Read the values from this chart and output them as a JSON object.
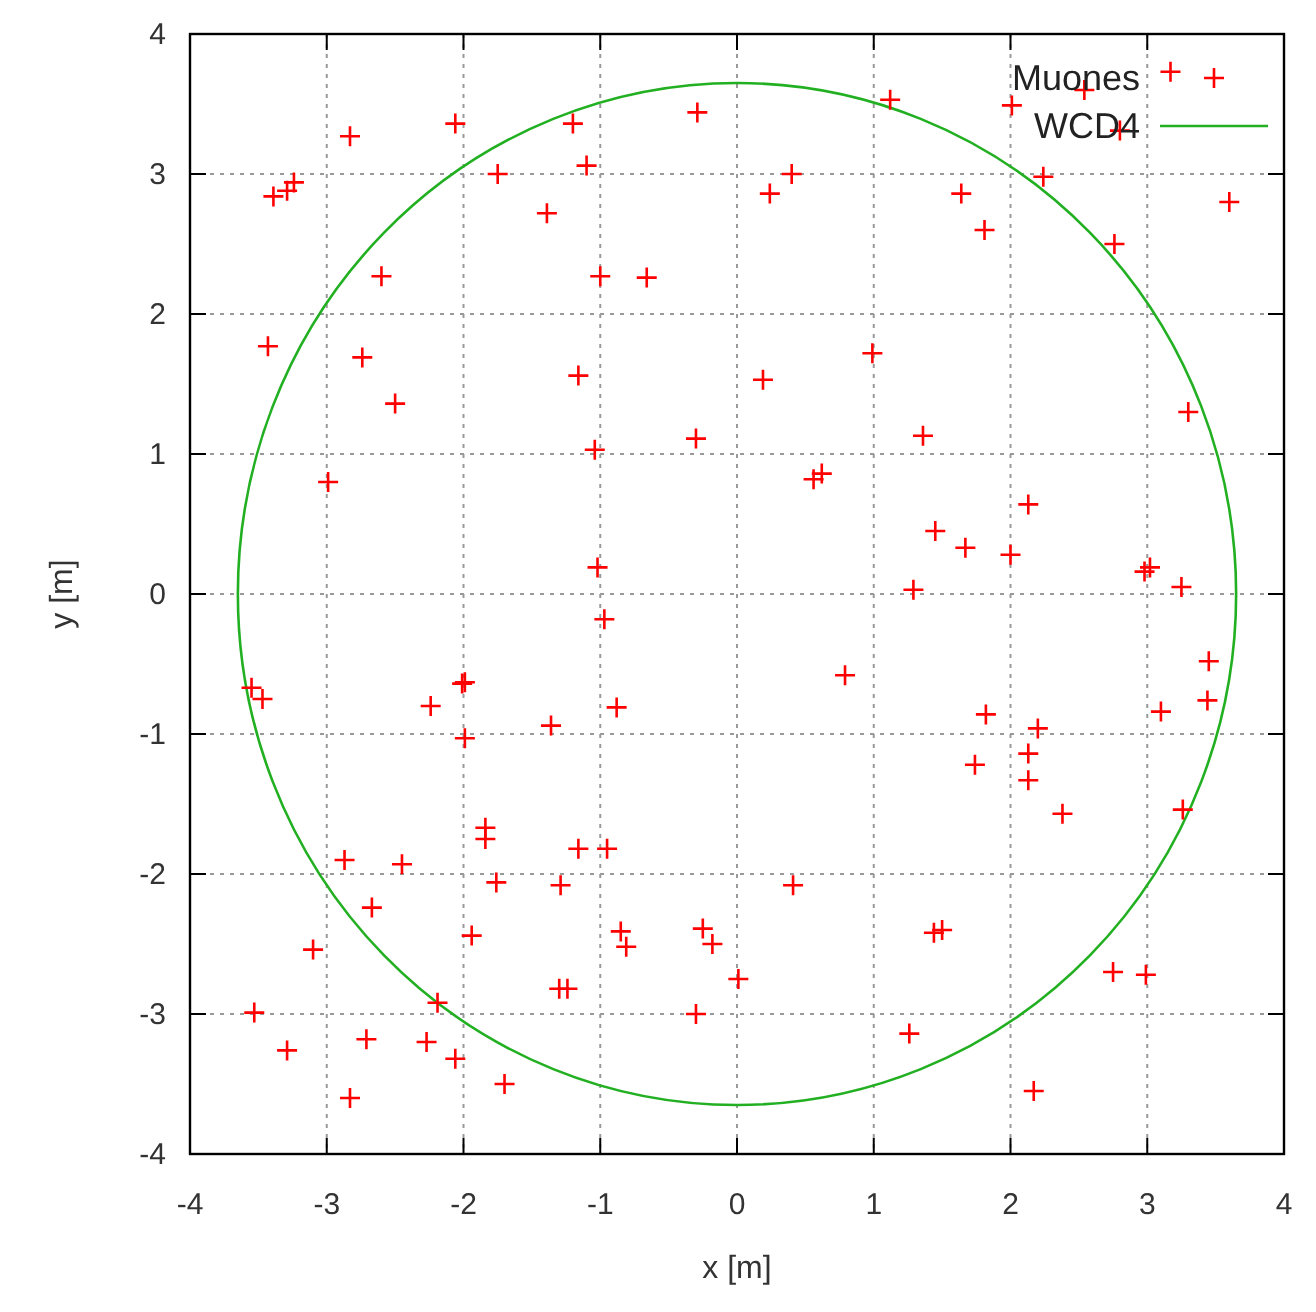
{
  "chart_data": {
    "type": "scatter",
    "xlabel": "x [m]",
    "ylabel": "y [m]",
    "xlim": [
      -4,
      4
    ],
    "ylim": [
      -4,
      4
    ],
    "xticks": [
      -4,
      -3,
      -2,
      -1,
      0,
      1,
      2,
      3,
      4
    ],
    "yticks": [
      -4,
      -3,
      -2,
      -1,
      0,
      1,
      2,
      3,
      4
    ],
    "grid": true,
    "legend": "top right",
    "annotations": [
      "WCD4"
    ],
    "series": [
      {
        "name": "Muones",
        "marker": "cross",
        "color": "#ff0000",
        "x": [
          -2.83,
          -2.06,
          -1.2,
          -0.29,
          -1.1,
          -1.75,
          -3.39,
          -3.29,
          -3.24,
          -1.39,
          -2.6,
          -1.0,
          -0.66,
          -3.43,
          -2.74,
          -2.5,
          -1.16,
          -0.3,
          -1.04,
          -2.99,
          -1.02,
          1.12,
          2.01,
          2.54,
          3.17,
          2.8,
          0.4,
          0.24,
          1.64,
          2.24,
          1.81,
          3.6,
          2.76,
          0.99,
          0.19,
          3.3,
          1.36,
          0.56,
          0.62,
          2.13,
          1.45,
          1.67,
          2.0,
          2.98,
          3.02,
          3.25,
          1.29,
          -0.97,
          -3.55,
          -3.47,
          -2.01,
          -1.99,
          -2.24,
          -1.99,
          -1.36,
          -0.88,
          -1.84,
          -1.84,
          -1.16,
          -0.95,
          -2.87,
          -2.45,
          -1.76,
          -1.29,
          -2.67,
          -1.94,
          -3.1,
          -0.85,
          -0.81,
          -0.25,
          -0.18,
          0.01,
          -1.3,
          -1.24,
          -2.19,
          -3.53,
          -0.3,
          -3.29,
          -2.71,
          -2.27,
          -2.06,
          -1.7,
          -2.83,
          0.79,
          1.82,
          2.2,
          2.13,
          2.13,
          1.74,
          2.38,
          3.45,
          3.44,
          3.1,
          3.26,
          0.41,
          1.44,
          1.5,
          2.75,
          2.99,
          1.26,
          2.17
        ],
        "values": [
          3.27,
          3.36,
          3.36,
          3.44,
          3.06,
          3.0,
          2.84,
          2.88,
          2.94,
          2.72,
          2.27,
          2.27,
          2.26,
          1.77,
          1.69,
          1.36,
          1.56,
          1.11,
          1.03,
          0.8,
          0.19,
          3.53,
          3.49,
          3.6,
          3.73,
          3.31,
          3.0,
          2.86,
          2.86,
          2.98,
          2.6,
          2.8,
          2.5,
          1.72,
          1.53,
          1.3,
          1.13,
          0.82,
          0.86,
          0.64,
          0.45,
          0.33,
          0.28,
          0.16,
          0.19,
          0.05,
          0.03,
          -0.18,
          -0.67,
          -0.75,
          -0.64,
          -0.63,
          -0.8,
          -1.03,
          -0.94,
          -0.81,
          -1.67,
          -1.75,
          -1.82,
          -1.82,
          -1.9,
          -1.93,
          -2.06,
          -2.08,
          -2.24,
          -2.44,
          -2.54,
          -2.41,
          -2.52,
          -2.39,
          -2.5,
          -2.75,
          -2.82,
          -2.82,
          -2.92,
          -2.99,
          -3.0,
          -3.26,
          -3.18,
          -3.2,
          -3.32,
          -3.5,
          -3.6,
          -0.58,
          -0.86,
          -0.96,
          -1.14,
          -1.33,
          -1.22,
          -1.57,
          -0.48,
          -0.76,
          -0.84,
          -1.54,
          -2.08,
          -2.42,
          -2.4,
          -2.7,
          -2.72,
          -3.14,
          -3.55
        ]
      }
    ]
  }
}
